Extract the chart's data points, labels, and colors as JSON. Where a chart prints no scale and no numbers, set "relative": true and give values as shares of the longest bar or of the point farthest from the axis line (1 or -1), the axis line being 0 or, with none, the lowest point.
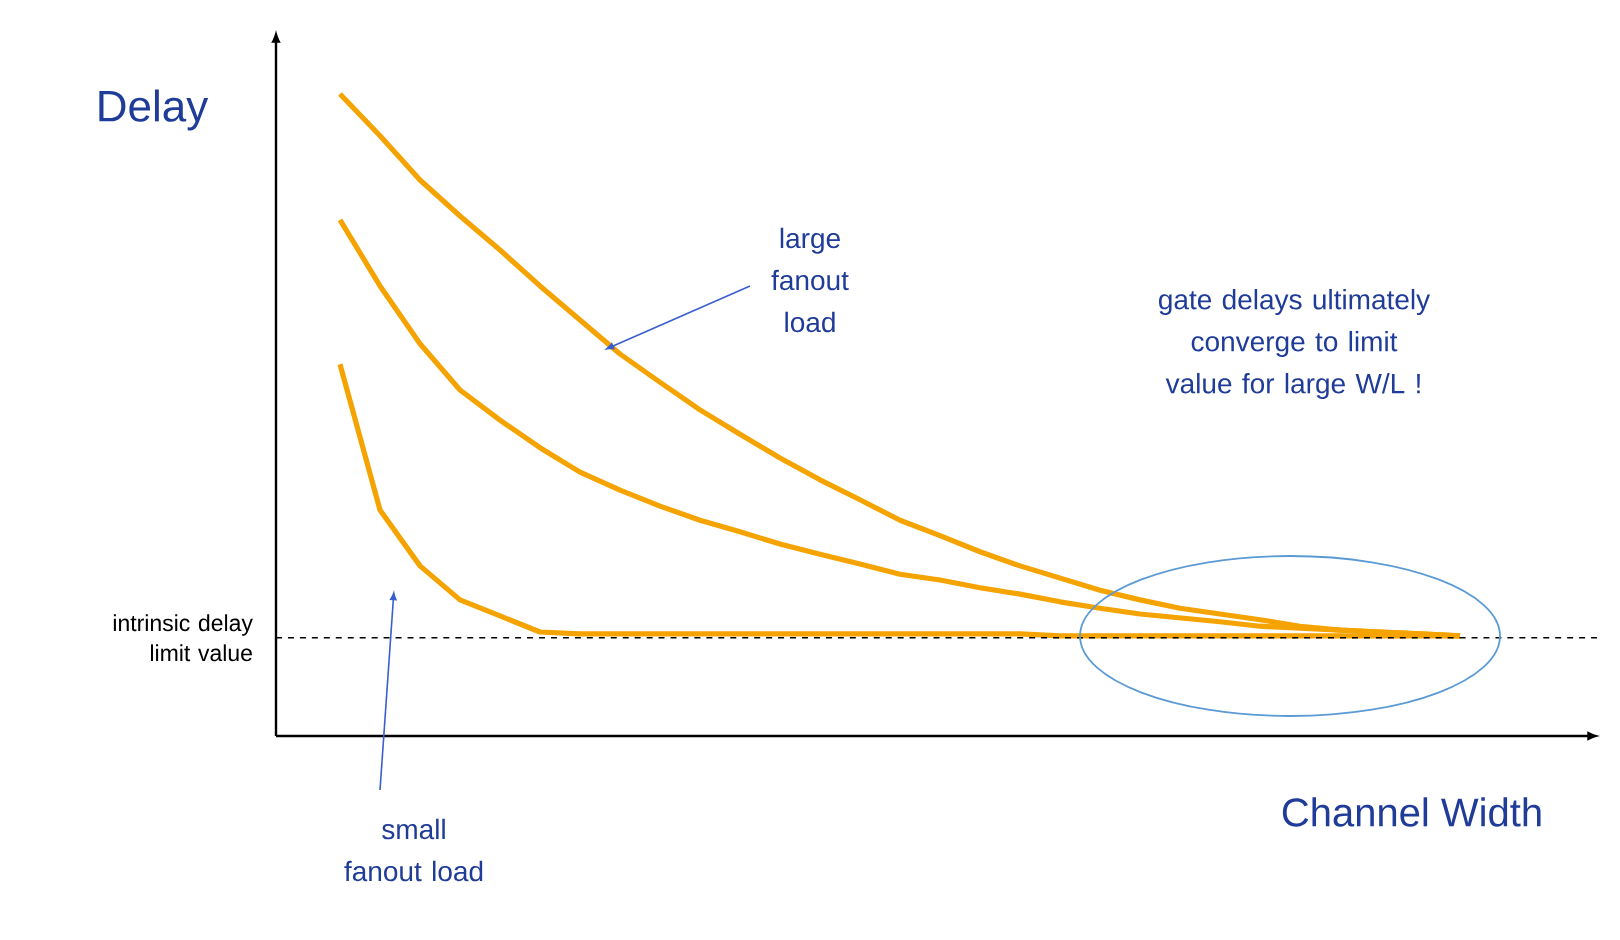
{
  "chart_data": {
    "type": "line",
    "relative": true,
    "xlabel": "Channel Width",
    "ylabel": "Delay",
    "categories": [
      null,
      null,
      null,
      null,
      null,
      null,
      null,
      null,
      null,
      null,
      null,
      null,
      null,
      null,
      null,
      null,
      null,
      null,
      null,
      null,
      null,
      null,
      null,
      null,
      null,
      null,
      null,
      null,
      null
    ],
    "series": [
      {
        "color": "#f5a300",
        "values": [
          1,
          0.935,
          0.866,
          0.81,
          0.757,
          0.701,
          0.648,
          0.595,
          0.551,
          0.508,
          0.47,
          0.433,
          0.399,
          0.368,
          0.336,
          0.312,
          0.287,
          0.265,
          0.246,
          0.227,
          0.212,
          0.199,
          0.19,
          0.181,
          0.171,
          0.165,
          0.162,
          0.159,
          0.156
        ]
      },
      {
        "color": "#f5a300",
        "values": [
          0.804,
          0.701,
          0.611,
          0.539,
          0.492,
          0.449,
          0.411,
          0.383,
          0.358,
          0.336,
          0.318,
          0.299,
          0.283,
          0.268,
          0.252,
          0.243,
          0.231,
          0.221,
          0.209,
          0.199,
          0.19,
          0.184,
          0.178,
          0.171,
          0.168,
          0.165,
          0.162,
          0.159,
          0.156
        ]
      },
      {
        "color": "#f5a300",
        "values": [
          0.579,
          0.352,
          0.265,
          0.212,
          0.187,
          0.162,
          0.159,
          0.159,
          0.159,
          0.159,
          0.159,
          0.159,
          0.159,
          0.159,
          0.159,
          0.159,
          0.159,
          0.159,
          0.156,
          0.156,
          0.156,
          0.156,
          0.156,
          0.156,
          0.156,
          0.156,
          0.156,
          0.156,
          0.156
        ]
      }
    ],
    "ref_lines": [
      {
        "axis": "y",
        "value": 0.153,
        "label": "intrinsic delay limit value",
        "color": "#000000",
        "line_style": "dashed"
      }
    ],
    "annotations": [
      "large fanout load",
      "small fanout load",
      "gate delays ultimately converge to limit value for large W/L !"
    ],
    "marker": "none",
    "line_style": "solid"
  }
}
